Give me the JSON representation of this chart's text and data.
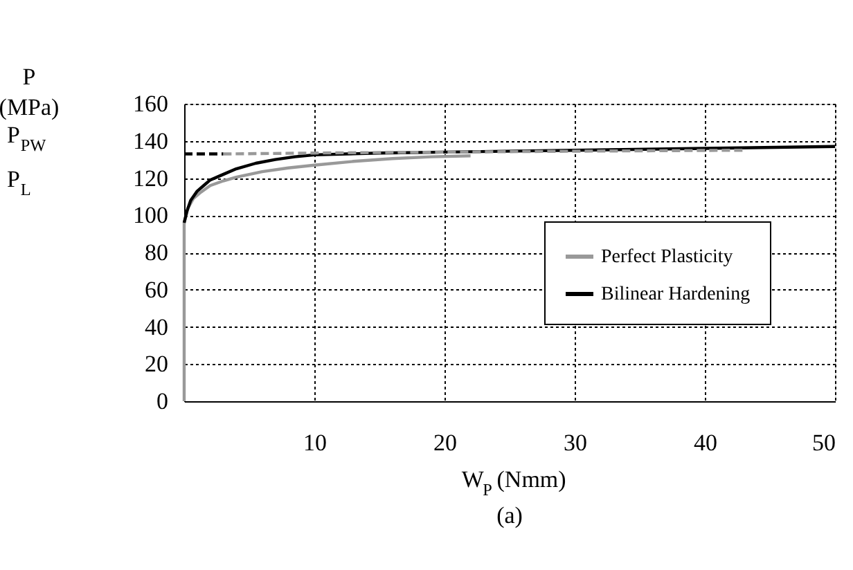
{
  "chart_data": {
    "type": "line",
    "ylabel": "P\n(MPa)",
    "xlabel": "W$_{P}$ (Nmm)",
    "annotations": [
      "P$_{PW}$",
      "P$_{L}$",
      "(a)"
    ],
    "xlim": [
      0,
      50
    ],
    "xticks": [
      10,
      20,
      30,
      40,
      50
    ],
    "ylim": [
      0,
      160
    ],
    "yticks": [
      0,
      20,
      40,
      60,
      80,
      100,
      120,
      140,
      160
    ],
    "grid": true,
    "legend": "right",
    "marker": "none",
    "series": [
      {
        "name": "Perfect Plasticity",
        "color": "#999999",
        "line_style": "solid",
        "x": [
          0,
          0,
          0.3,
          0.7,
          1.2,
          2,
          3,
          4,
          6,
          8,
          10,
          13,
          16,
          19,
          22
        ],
        "values": [
          0,
          96,
          104,
          109,
          112,
          116,
          118.5,
          120.5,
          123.5,
          125.5,
          127,
          129,
          130.5,
          131.5,
          132
        ]
      },
      {
        "name": "Bilinear Hardening",
        "color": "#000000",
        "line_style": "solid",
        "x": [
          0,
          0.2,
          0.5,
          1,
          1.5,
          2,
          3,
          4,
          5.5,
          7,
          8.5,
          10,
          15,
          20,
          30,
          40,
          50
        ],
        "values": [
          96,
          102,
          108,
          113,
          116,
          119,
          122,
          125,
          128,
          130,
          131.5,
          132.5,
          133.5,
          134,
          135,
          136,
          137
        ]
      },
      {
        "color": "#999999",
        "line_style": "dashed",
        "x": [
          3,
          10,
          20,
          30,
          43
        ],
        "values": [
          133,
          133.5,
          134,
          134.5,
          135
        ]
      },
      {
        "color": "#000000",
        "line_style": "dashed",
        "x": [
          0,
          3
        ],
        "values": [
          133,
          133
        ]
      }
    ]
  }
}
